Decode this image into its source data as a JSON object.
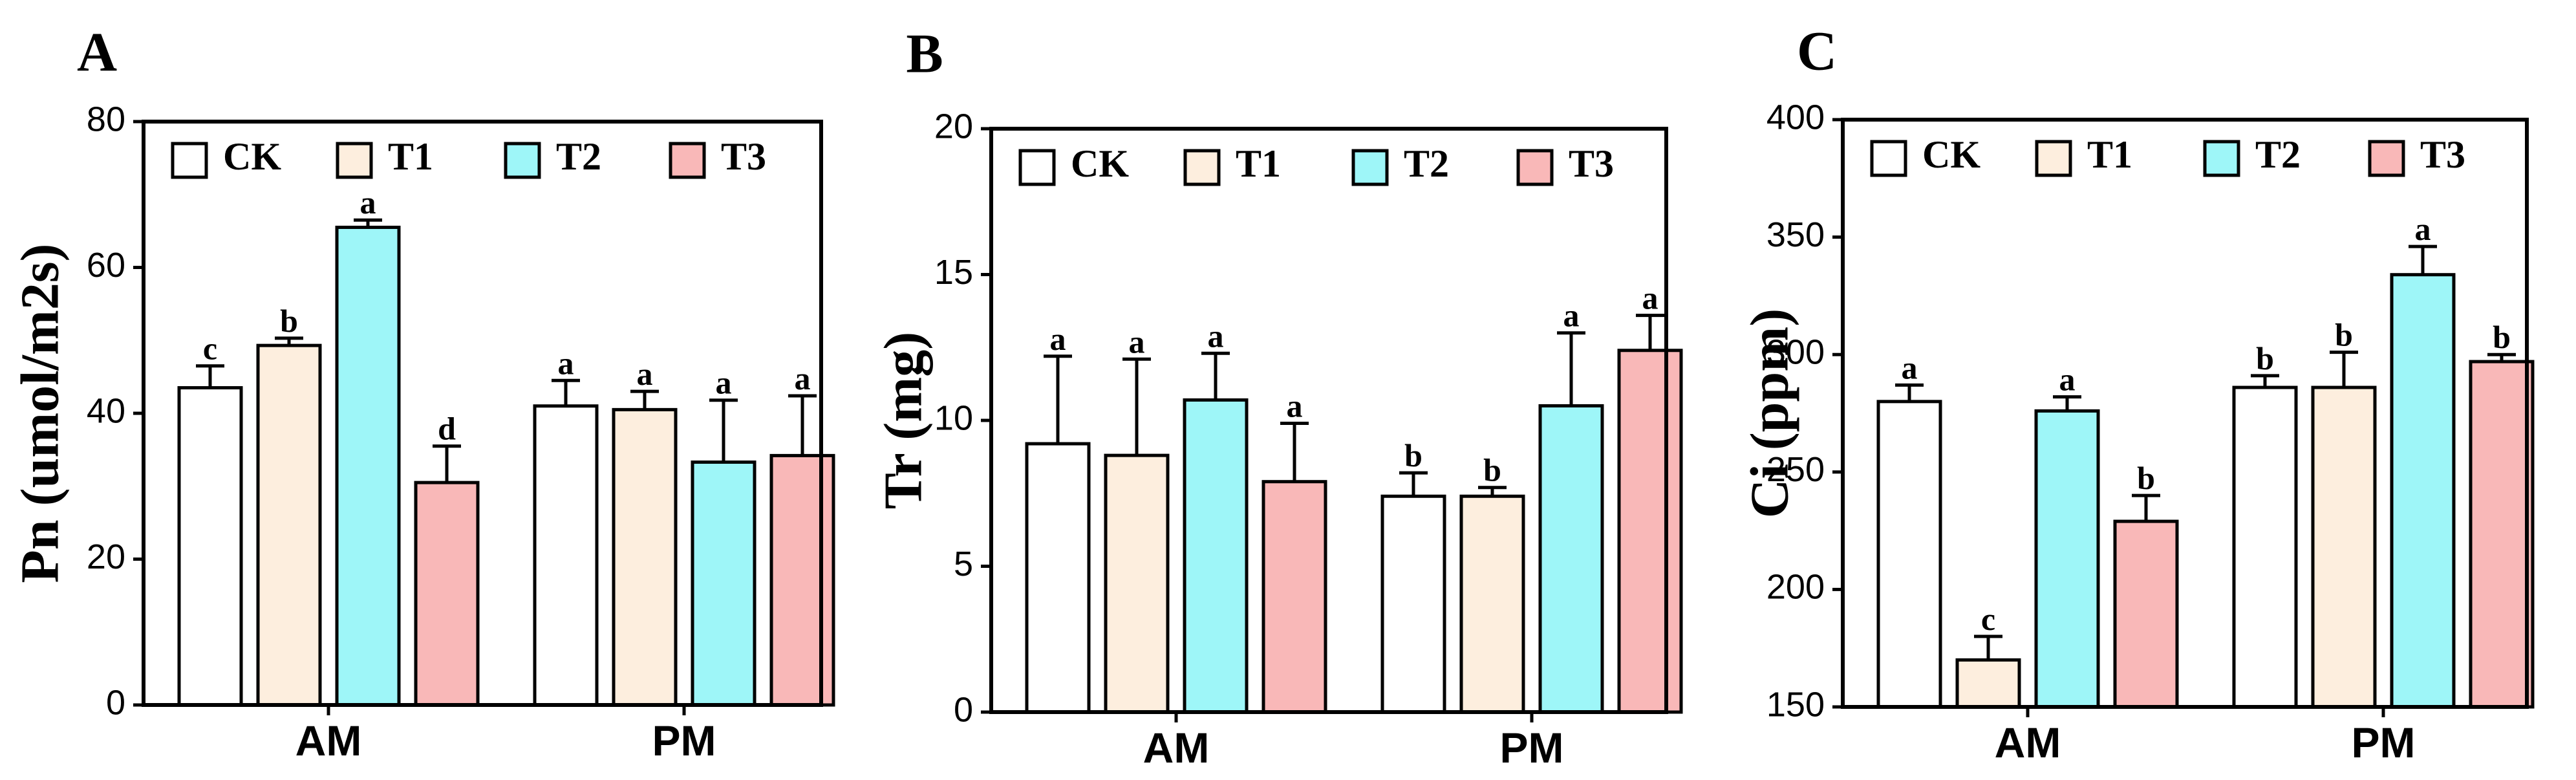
{
  "figure_letters": [
    "A",
    "B",
    "C"
  ],
  "chart_data": [
    {
      "type": "bar",
      "panel": "A",
      "ylabel": "Pn (umol/m2s)",
      "xlabel": "",
      "categories": [
        "AM",
        "PM"
      ],
      "ylim": [
        0,
        80
      ],
      "yticks": [
        "0",
        "20",
        "40",
        "60",
        "80"
      ],
      "series": [
        {
          "name": "CK",
          "color": "#ffffff",
          "values": [
            43.5,
            41
          ],
          "errors": [
            3,
            3.5
          ],
          "labels": [
            "c",
            "a"
          ]
        },
        {
          "name": "T1",
          "color": "#fdeede",
          "values": [
            49.3,
            40.5
          ],
          "errors": [
            1,
            2.5
          ],
          "labels": [
            "b",
            "a"
          ]
        },
        {
          "name": "T2",
          "color": "#9ef6f8",
          "values": [
            65.5,
            33.3
          ],
          "errors": [
            1,
            8.5
          ],
          "labels": [
            "a",
            "a"
          ]
        },
        {
          "name": "T3",
          "color": "#f9b8b8",
          "values": [
            30.5,
            34.2
          ],
          "errors": [
            5,
            8.2
          ],
          "labels": [
            "d",
            "a"
          ]
        }
      ]
    },
    {
      "type": "bar",
      "panel": "B",
      "ylabel": "Tr (mg)",
      "xlabel": "",
      "categories": [
        "AM",
        "PM"
      ],
      "ylim": [
        0,
        20
      ],
      "yticks": [
        "0",
        "5",
        "10",
        "15",
        "20"
      ],
      "series": [
        {
          "name": "CK",
          "color": "#ffffff",
          "values": [
            9.2,
            7.4
          ],
          "errors": [
            3,
            0.8
          ],
          "labels": [
            "a",
            "b"
          ]
        },
        {
          "name": "T1",
          "color": "#fdeede",
          "values": [
            8.8,
            7.4
          ],
          "errors": [
            3.3,
            0.3
          ],
          "labels": [
            "a",
            "b"
          ]
        },
        {
          "name": "T2",
          "color": "#9ef6f8",
          "values": [
            10.7,
            10.5
          ],
          "errors": [
            1.6,
            2.5
          ],
          "labels": [
            "a",
            "a"
          ]
        },
        {
          "name": "T3",
          "color": "#f9b8b8",
          "values": [
            7.9,
            12.4
          ],
          "errors": [
            2,
            1.2
          ],
          "labels": [
            "a",
            "a"
          ]
        }
      ]
    },
    {
      "type": "bar",
      "panel": "C",
      "ylabel": "Ci (ppm)",
      "xlabel": "",
      "categories": [
        "AM",
        "PM"
      ],
      "ylim": [
        150,
        400
      ],
      "yticks": [
        "150",
        "200",
        "250",
        "300",
        "350",
        "400"
      ],
      "series": [
        {
          "name": "CK",
          "color": "#ffffff",
          "values": [
            280,
            286
          ],
          "errors": [
            7,
            5
          ],
          "labels": [
            "a",
            "b"
          ]
        },
        {
          "name": "T1",
          "color": "#fdeede",
          "values": [
            170,
            286
          ],
          "errors": [
            10,
            15
          ],
          "labels": [
            "c",
            "b"
          ]
        },
        {
          "name": "T2",
          "color": "#9ef6f8",
          "values": [
            276,
            334
          ],
          "errors": [
            6,
            12
          ],
          "labels": [
            "a",
            "a"
          ]
        },
        {
          "name": "T3",
          "color": "#f9b8b8",
          "values": [
            229,
            297
          ],
          "errors": [
            11,
            3
          ],
          "labels": [
            "b",
            "b"
          ]
        }
      ]
    }
  ]
}
